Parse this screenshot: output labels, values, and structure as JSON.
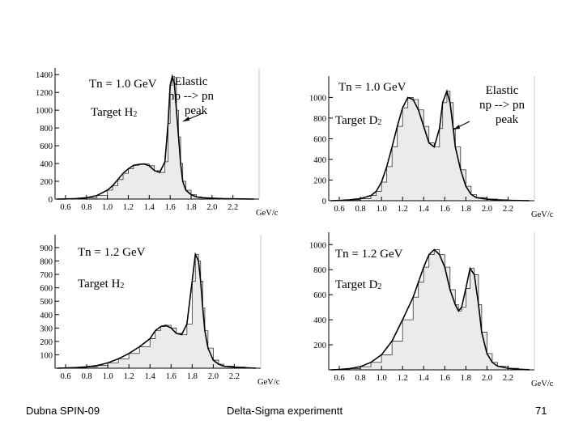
{
  "footer": {
    "left": "Dubna SPIN-09",
    "center": "Delta-Sigma experimentt",
    "page": "71"
  },
  "colors": {
    "fill": "#ebebeb",
    "axis": "#000000",
    "curve": "#000000"
  },
  "chart_data": [
    {
      "type": "area",
      "xlabel": "GeV/c",
      "xlim": [
        0.5,
        2.45
      ],
      "ylim": [
        0,
        1420
      ],
      "xticks": [
        "0.6",
        "0.8",
        "1.0",
        "1.2",
        "1.4",
        "1.6",
        "1.8",
        "2.0",
        "2.2"
      ],
      "yticks": [
        "0",
        "200",
        "400",
        "600",
        "800",
        "1000",
        "1200",
        "1400"
      ],
      "energy_label": "Tn = 1.0 GeV",
      "target_label": "Target H",
      "target_sub": "2",
      "annotation_lines": [
        "Elastic",
        "np --> pn",
        "peak"
      ],
      "x": [
        0.52,
        0.6,
        0.7,
        0.8,
        0.9,
        1.0,
        1.05,
        1.1,
        1.15,
        1.2,
        1.25,
        1.3,
        1.35,
        1.4,
        1.45,
        1.5,
        1.55,
        1.58,
        1.6,
        1.62,
        1.64,
        1.66,
        1.68,
        1.7,
        1.72,
        1.75,
        1.8,
        1.85,
        1.9,
        2.0,
        2.1,
        2.2,
        2.3,
        2.4
      ],
      "y": [
        0,
        2,
        5,
        15,
        40,
        100,
        150,
        220,
        290,
        340,
        380,
        390,
        395,
        375,
        320,
        300,
        420,
        850,
        1280,
        1380,
        1300,
        1000,
        700,
        400,
        200,
        100,
        50,
        25,
        15,
        10,
        5,
        3,
        2,
        0
      ]
    },
    {
      "type": "area",
      "xlabel": "GeV/c",
      "xlim": [
        0.5,
        2.45
      ],
      "ylim": [
        0,
        1160
      ],
      "xticks": [
        "0.6",
        "0.8",
        "1.0",
        "1.2",
        "1.4",
        "1.6",
        "1.8",
        "2.0",
        "2.2"
      ],
      "yticks": [
        "0",
        "200",
        "400",
        "600",
        "800",
        "1000"
      ],
      "energy_label": "Tn = 1.0 GeV",
      "target_label": "Target D",
      "target_sub": "2",
      "annotation_lines": [
        "Elastic",
        "np --> pn",
        "peak"
      ],
      "x": [
        0.52,
        0.6,
        0.7,
        0.8,
        0.9,
        0.95,
        1.0,
        1.05,
        1.1,
        1.15,
        1.2,
        1.25,
        1.3,
        1.35,
        1.4,
        1.45,
        1.5,
        1.55,
        1.58,
        1.62,
        1.65,
        1.68,
        1.7,
        1.75,
        1.8,
        1.85,
        1.9,
        2.0,
        2.1,
        2.2,
        2.3,
        2.4
      ],
      "y": [
        0,
        3,
        8,
        20,
        50,
        90,
        180,
        330,
        520,
        720,
        900,
        1000,
        980,
        880,
        720,
        560,
        520,
        700,
        950,
        1060,
        950,
        700,
        520,
        300,
        140,
        60,
        30,
        15,
        8,
        4,
        2,
        0
      ]
    },
    {
      "type": "area",
      "xlabel": "GeV/c",
      "xlim": [
        0.5,
        2.45
      ],
      "ylim": [
        0,
        960
      ],
      "xticks": [
        "0.6",
        "0.8",
        "1.0",
        "1.2",
        "1.4",
        "1.6",
        "1.8",
        "2.0",
        "2.2"
      ],
      "yticks": [
        "100",
        "200",
        "300",
        "400",
        "500",
        "600",
        "700",
        "800",
        "900"
      ],
      "energy_label": "Tn = 1.2 GeV",
      "target_label": "Target H",
      "target_sub": "2",
      "annotation_lines": [],
      "x": [
        0.52,
        0.6,
        0.7,
        0.8,
        0.9,
        1.0,
        1.1,
        1.2,
        1.3,
        1.4,
        1.45,
        1.5,
        1.55,
        1.6,
        1.65,
        1.7,
        1.75,
        1.8,
        1.83,
        1.86,
        1.88,
        1.9,
        1.92,
        1.95,
        2.0,
        2.05,
        2.1,
        2.2,
        2.3,
        2.4
      ],
      "y": [
        0,
        2,
        5,
        10,
        20,
        40,
        70,
        110,
        160,
        220,
        280,
        310,
        320,
        300,
        260,
        250,
        330,
        650,
        850,
        800,
        650,
        450,
        280,
        150,
        60,
        30,
        15,
        8,
        4,
        0
      ]
    },
    {
      "type": "area",
      "xlabel": "GeV/c",
      "xlim": [
        0.5,
        2.45
      ],
      "ylim": [
        0,
        1060
      ],
      "xticks": [
        "0.6",
        "0.8",
        "1.0",
        "1.2",
        "1.4",
        "1.6",
        "1.8",
        "2.0",
        "2.2"
      ],
      "yticks": [
        "200",
        "400",
        "600",
        "800",
        "1000"
      ],
      "energy_label": "Tn = 1.2 GeV",
      "target_label": "Target D",
      "target_sub": "2",
      "annotation_lines": [],
      "x": [
        0.52,
        0.6,
        0.7,
        0.8,
        0.9,
        1.0,
        1.1,
        1.2,
        1.3,
        1.35,
        1.4,
        1.45,
        1.5,
        1.55,
        1.6,
        1.65,
        1.7,
        1.73,
        1.76,
        1.8,
        1.84,
        1.88,
        1.92,
        1.95,
        2.0,
        2.05,
        2.1,
        2.2,
        2.3,
        2.4
      ],
      "y": [
        0,
        3,
        10,
        25,
        60,
        120,
        230,
        400,
        580,
        700,
        820,
        920,
        960,
        920,
        820,
        640,
        520,
        470,
        500,
        650,
        810,
        760,
        520,
        300,
        130,
        60,
        30,
        12,
        5,
        0
      ]
    }
  ]
}
